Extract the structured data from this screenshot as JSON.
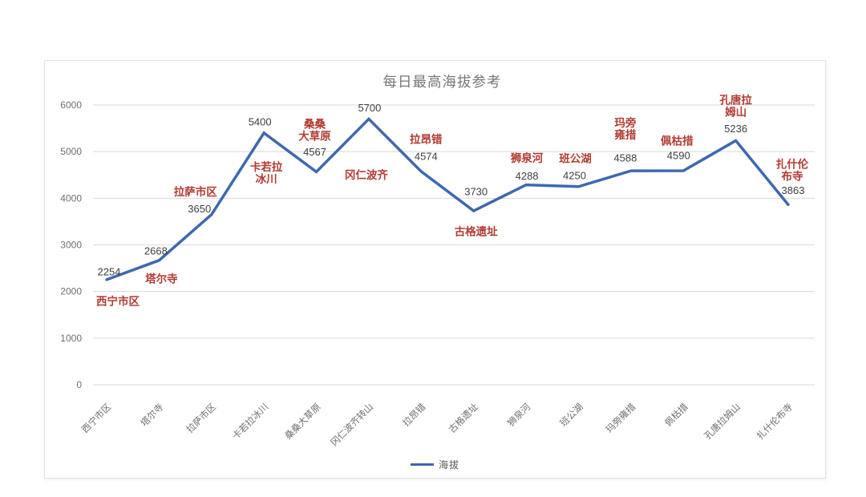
{
  "page": {
    "background": "#ffffff"
  },
  "chart_data": {
    "type": "line",
    "title": "每日最高海拔参考",
    "legend_label": "海拔",
    "legend_position": "bottom",
    "grid": true,
    "ylim": [
      0,
      6000
    ],
    "yticks": [
      0,
      1000,
      2000,
      3000,
      4000,
      5000,
      6000
    ],
    "categories": [
      "西宁市区",
      "塔尔寺",
      "拉萨市区",
      "卡若拉冰川",
      "桑桑大草原",
      "冈仁波齐转山",
      "拉昂错",
      "古格遗址",
      "狮泉河",
      "班公湖",
      "玛旁雍措",
      "佩枯措",
      "孔唐拉姆山",
      "扎什伦布寺"
    ],
    "series": [
      {
        "name": "海拔",
        "values": [
          2254,
          2668,
          3650,
          5400,
          4567,
          5700,
          4574,
          3730,
          4288,
          4250,
          4588,
          4590,
          5236,
          3863
        ]
      }
    ],
    "point_annotations": [
      {
        "name": "西宁市区",
        "value": 2254
      },
      {
        "name": "塔尔寺",
        "value": 2668
      },
      {
        "name": "拉萨市区",
        "value": 3650
      },
      {
        "name": "卡若拉\n冰川",
        "value": 5400
      },
      {
        "name": "桑桑\n大草原",
        "value": 4567
      },
      {
        "name": "冈仁波齐",
        "value": 5700
      },
      {
        "name": "拉昂错",
        "value": 4574
      },
      {
        "name": "古格遗址",
        "value": 3730
      },
      {
        "name": "狮泉河",
        "value": 4288
      },
      {
        "name": "班公湖",
        "value": 4250
      },
      {
        "name": "玛旁\n雍措",
        "value": 4588
      },
      {
        "name": "佩枯措",
        "value": 4590
      },
      {
        "name": "孔唐拉\n姆山",
        "value": 5236
      },
      {
        "name": "扎什伦\n布寺",
        "value": 3863
      }
    ],
    "colors": {
      "line": "#3E68B0",
      "annotation_name": "#B23B33",
      "annotation_value": "#3F3F3F",
      "title_text": "#767676",
      "axis_text": "#6F6F6F",
      "gridline": "#D9D9D9",
      "card_border": "#E3E3E3",
      "legend_text": "#595959"
    }
  }
}
